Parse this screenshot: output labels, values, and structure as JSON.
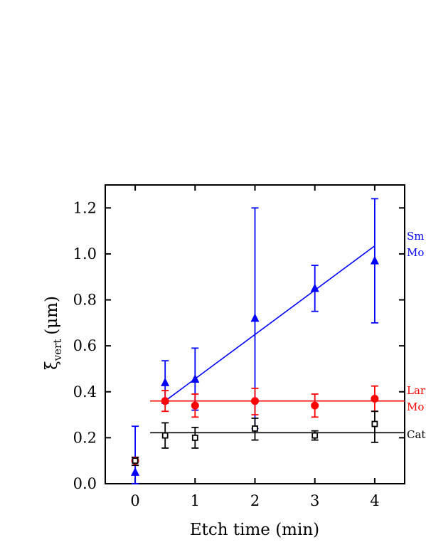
{
  "chart_data": {
    "type": "scatter",
    "xlabel": "Etch time (min)",
    "ylabel": {
      "symbol": "ξ",
      "subscript": "vert",
      "unit": "(μm)"
    },
    "xlim": [
      -0.5,
      4.5
    ],
    "ylim": [
      0.0,
      1.3
    ],
    "xticks": [
      "0",
      "1",
      "2",
      "3",
      "4"
    ],
    "yticks": [
      "0.0",
      "0.2",
      "0.4",
      "0.6",
      "0.8",
      "1.0",
      "1.2"
    ],
    "grid": false,
    "series": [
      {
        "label_lines": [
          "Sm",
          "Mo"
        ],
        "color": "#0000ff",
        "marker": "filled-triangle",
        "points": [
          {
            "x": 0,
            "y": 0.05,
            "lo": 0.0,
            "hi": 0.25
          },
          {
            "x": 0.5,
            "y": 0.44,
            "lo": 0.35,
            "hi": 0.535
          },
          {
            "x": 1,
            "y": 0.455,
            "lo": 0.32,
            "hi": 0.59
          },
          {
            "x": 2,
            "y": 0.72,
            "lo": 0.24,
            "hi": 1.2
          },
          {
            "x": 3,
            "y": 0.85,
            "lo": 0.75,
            "hi": 0.95
          },
          {
            "x": 4,
            "y": 0.97,
            "lo": 0.7,
            "hi": 1.24
          }
        ],
        "fit": {
          "x0": 0.5,
          "y0": 0.36,
          "x1": 4,
          "y1": 1.035
        }
      },
      {
        "label_lines": [
          "Lar",
          "Mo"
        ],
        "color": "#ff0000",
        "marker": "filled-circle",
        "points": [
          {
            "x": 0,
            "y": 0.1,
            "lo": 0.08,
            "hi": 0.115
          },
          {
            "x": 0.5,
            "y": 0.36,
            "lo": 0.315,
            "hi": 0.405
          },
          {
            "x": 1,
            "y": 0.34,
            "lo": 0.29,
            "hi": 0.39
          },
          {
            "x": 2,
            "y": 0.36,
            "lo": 0.3,
            "hi": 0.415
          },
          {
            "x": 3,
            "y": 0.34,
            "lo": 0.29,
            "hi": 0.39
          },
          {
            "x": 4,
            "y": 0.37,
            "lo": 0.315,
            "hi": 0.425
          }
        ],
        "fit": {
          "x0": 0.25,
          "y0": 0.36,
          "x1": 4.5,
          "y1": 0.36
        }
      },
      {
        "label_lines": [
          "Cat"
        ],
        "color": "#000000",
        "marker": "open-square",
        "points": [
          {
            "x": 0,
            "y": 0.1,
            "lo": 0.08,
            "hi": 0.115
          },
          {
            "x": 0.5,
            "y": 0.21,
            "lo": 0.155,
            "hi": 0.265
          },
          {
            "x": 1,
            "y": 0.2,
            "lo": 0.155,
            "hi": 0.245
          },
          {
            "x": 2,
            "y": 0.24,
            "lo": 0.19,
            "hi": 0.285
          },
          {
            "x": 3,
            "y": 0.21,
            "lo": 0.19,
            "hi": 0.23
          },
          {
            "x": 4,
            "y": 0.26,
            "lo": 0.18,
            "hi": 0.315
          }
        ],
        "fit": {
          "x0": 0.25,
          "y0": 0.222,
          "x1": 4.5,
          "y1": 0.222
        }
      }
    ]
  }
}
